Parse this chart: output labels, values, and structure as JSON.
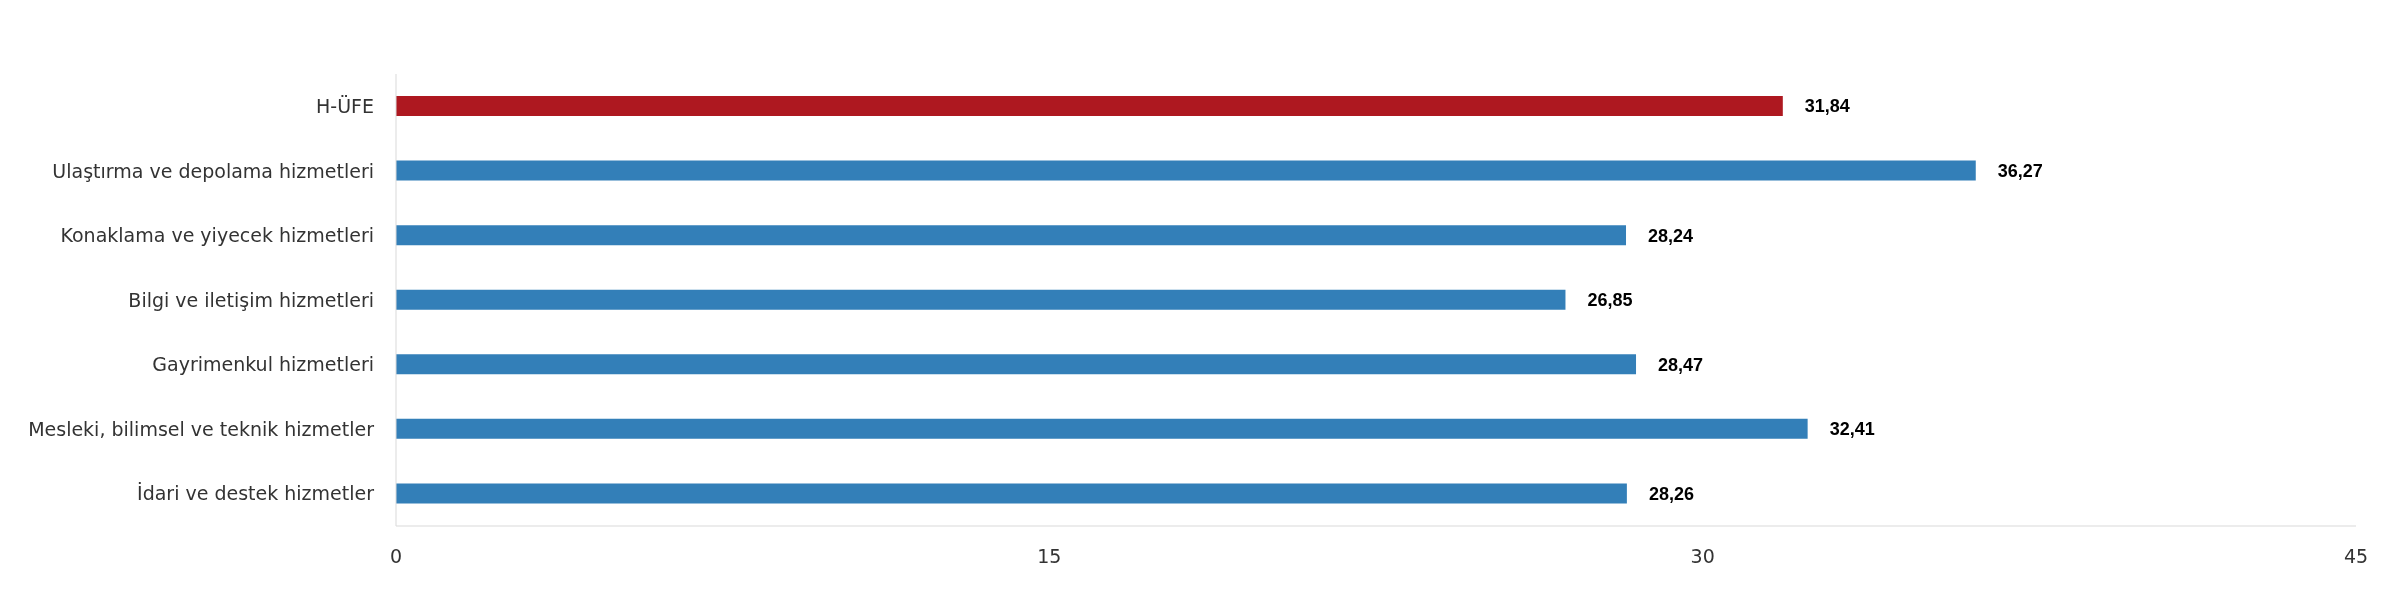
{
  "chart_data": {
    "type": "bar",
    "orientation": "horizontal",
    "categories": [
      "H-ÜFE",
      "Ulaştırma ve depolama hizmetleri",
      "Konaklama ve yiyecek hizmetleri",
      "Bilgi ve iletişim hizmetleri",
      "Gayrimenkul hizmetleri",
      "Mesleki, bilimsel ve teknik hizmetler",
      "İdari ve destek hizmetler"
    ],
    "values": [
      31.84,
      36.27,
      28.24,
      26.85,
      28.47,
      32.41,
      28.26
    ],
    "colors": [
      "#ae1820",
      "#337fb8",
      "#337fb8",
      "#337fb8",
      "#337fb8",
      "#337fb8",
      "#337fb8"
    ],
    "value_labels": [
      "31,84",
      "36,27",
      "28,24",
      "26,85",
      "28,47",
      "32,41",
      "28,26"
    ],
    "xlim": [
      0,
      45
    ],
    "xticks": [
      0,
      15,
      30,
      45
    ],
    "grid": false
  }
}
